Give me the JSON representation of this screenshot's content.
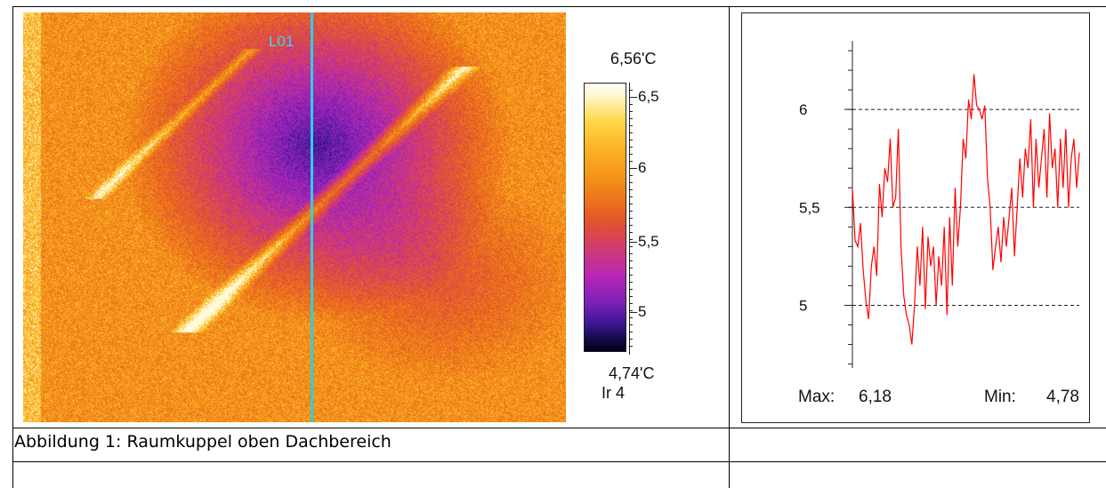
{
  "thermal_image": {
    "line_label": "L01",
    "colorbar": {
      "max_label": "6,56'C",
      "min_label": "4,74'C",
      "ticks": [
        "6,5",
        "6",
        "5,5",
        "5"
      ],
      "palette_label": "Ir 4"
    }
  },
  "chart_data": {
    "type": "line",
    "y_ticks": [
      "6",
      "5,5",
      "5"
    ],
    "ylim": [
      4.68,
      6.35
    ],
    "grid": "dashed-horizontal",
    "series": [
      {
        "color": "#ff0000",
        "values": [
          5.6,
          5.33,
          5.3,
          5.42,
          5.18,
          5.02,
          4.93,
          5.2,
          5.3,
          5.15,
          5.62,
          5.45,
          5.7,
          5.63,
          5.85,
          5.5,
          5.55,
          5.9,
          5.3,
          5.05,
          4.95,
          4.9,
          4.8,
          5.0,
          5.3,
          5.1,
          5.4,
          4.98,
          5.35,
          5.2,
          5.3,
          5.0,
          5.25,
          5.1,
          5.4,
          4.95,
          5.45,
          5.1,
          5.6,
          5.3,
          5.5,
          5.85,
          5.75,
          6.05,
          5.95,
          6.18,
          6.02,
          6.0,
          5.95,
          6.02,
          5.65,
          5.5,
          5.18,
          5.3,
          5.4,
          5.22,
          5.45,
          5.3,
          5.45,
          5.6,
          5.25,
          5.5,
          5.75,
          5.55,
          5.8,
          5.7,
          5.95,
          5.5,
          5.85,
          5.6,
          5.75,
          5.9,
          5.55,
          5.98,
          5.7,
          5.8,
          5.5,
          5.85,
          5.6,
          5.9,
          5.5,
          5.75,
          5.85,
          5.6,
          5.78
        ]
      }
    ],
    "stats": {
      "max_label": "Max:",
      "max_value": "6,18",
      "min_label": "Min:",
      "min_value": "4,78"
    }
  },
  "caption": "Abbildung 1: Raumkuppel oben Dachbereich"
}
